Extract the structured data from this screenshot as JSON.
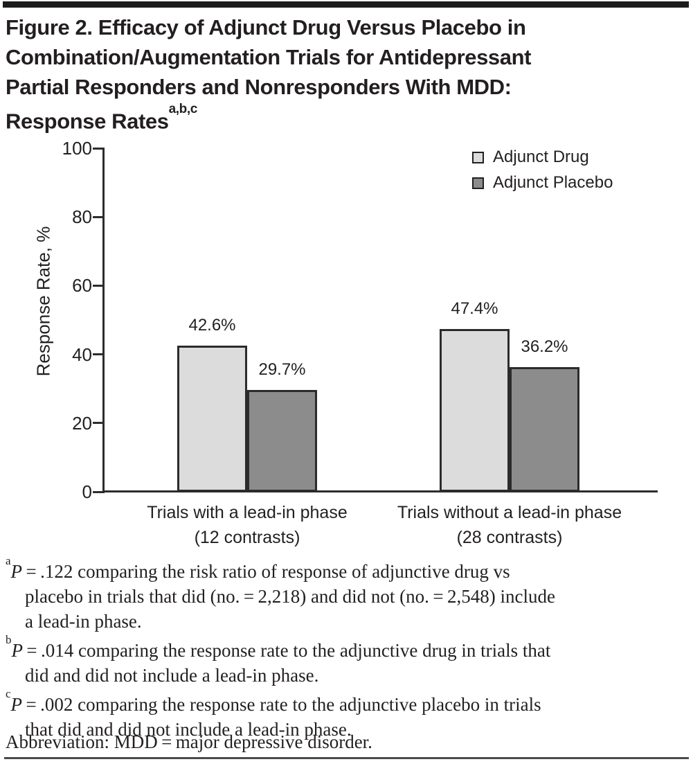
{
  "title": {
    "lines": [
      "Figure 2. Efficacy of Adjunct Drug Versus Placebo in",
      "Combination/Augmentation Trials for Antidepressant",
      "Partial Responders and Nonresponders With MDD:",
      "Response Rates"
    ],
    "superscript": "a,b,c"
  },
  "chart_data": {
    "type": "bar",
    "title": "",
    "xlabel": "",
    "ylabel": "Response Rate, %",
    "ylim": [
      0,
      100
    ],
    "yticks": [
      0,
      20,
      40,
      60,
      80,
      100
    ],
    "grid": false,
    "legend_position": "top-right",
    "categories": [
      {
        "label": "Trials with a lead-in phase",
        "sub": "(12 contrasts)"
      },
      {
        "label": "Trials without a lead-in phase",
        "sub": "(28 contrasts)"
      }
    ],
    "series": [
      {
        "name": "Adjunct Drug",
        "color": "#dcdcdc",
        "values": [
          42.6,
          47.4
        ],
        "labels": [
          "42.6%",
          "47.4%"
        ]
      },
      {
        "name": "Adjunct Placebo",
        "color": "#8c8c8c",
        "values": [
          29.7,
          36.2
        ],
        "labels": [
          "29.7%",
          "36.2%"
        ]
      }
    ]
  },
  "footnotes": [
    {
      "marker": "a",
      "p": "P",
      "rest": " = .122 comparing the risk ratio of response of adjunctive drug vs",
      "cont": [
        "placebo in trials that did (no. = 2,218) and did not (no. = 2,548) include",
        "a lead-in phase."
      ]
    },
    {
      "marker": "b",
      "p": "P",
      "rest": " = .014 comparing the response rate to the adjunctive drug in trials that",
      "cont": [
        "did and did not include a lead-in phase."
      ]
    },
    {
      "marker": "c",
      "p": "P",
      "rest": " = .002 comparing the response rate to the adjunctive placebo in trials",
      "cont": [
        "that did and did not include a lead-in phase."
      ]
    }
  ],
  "abbreviation": "Abbreviation: MDD = major depressive disorder."
}
